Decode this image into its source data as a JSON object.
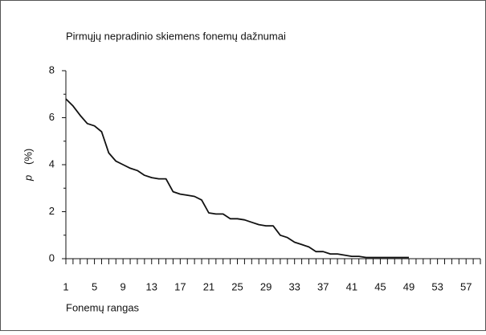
{
  "chart_data": {
    "type": "line",
    "title": "Pirmųjų nepradinio skiemens fonemų dažnumai",
    "x_label": "Fonemų rangas",
    "y_label_var": "p",
    "y_label_unit": "(%)",
    "x": [
      1,
      2,
      3,
      4,
      5,
      6,
      7,
      8,
      9,
      10,
      11,
      12,
      13,
      14,
      15,
      16,
      17,
      18,
      19,
      20,
      21,
      22,
      23,
      24,
      25,
      26,
      27,
      28,
      29,
      30,
      31,
      32,
      33,
      34,
      35,
      36,
      37,
      38,
      39,
      40,
      41,
      42,
      43,
      44,
      45,
      46,
      47,
      48,
      49
    ],
    "series": [
      {
        "name": "p",
        "color": "#111111",
        "values": [
          6.8,
          6.5,
          6.1,
          5.75,
          5.65,
          5.4,
          4.5,
          4.15,
          4.0,
          3.85,
          3.75,
          3.55,
          3.45,
          3.4,
          3.4,
          2.85,
          2.75,
          2.7,
          2.65,
          2.5,
          1.95,
          1.9,
          1.9,
          1.7,
          1.7,
          1.65,
          1.55,
          1.45,
          1.4,
          1.4,
          1.0,
          0.9,
          0.7,
          0.6,
          0.5,
          0.3,
          0.3,
          0.2,
          0.2,
          0.15,
          0.1,
          0.1,
          0.05,
          0.05,
          0.05,
          0.05,
          0.05,
          0.05,
          0.05
        ]
      }
    ],
    "xlim": [
      1,
      59
    ],
    "xticks": [
      1,
      5,
      9,
      13,
      17,
      21,
      25,
      29,
      33,
      37,
      41,
      45,
      49,
      53,
      57
    ],
    "xminor_ticks": [
      1,
      2,
      3,
      4,
      5,
      6,
      7,
      8,
      9,
      10,
      11,
      12,
      13,
      14,
      15,
      16,
      17,
      18,
      19,
      20,
      21,
      22,
      23,
      24,
      25,
      26,
      27,
      28,
      29,
      30,
      31,
      32,
      33,
      34,
      35,
      36,
      37,
      38,
      39,
      40,
      41,
      42,
      43,
      44,
      45,
      46,
      47,
      48,
      49,
      50,
      51,
      52,
      53,
      54,
      55,
      56,
      57,
      58,
      59
    ],
    "ylim": [
      0,
      8
    ],
    "yticks": [
      0,
      2,
      4,
      6,
      8
    ],
    "yminor_ticks": [
      1,
      3,
      5,
      7
    ]
  }
}
